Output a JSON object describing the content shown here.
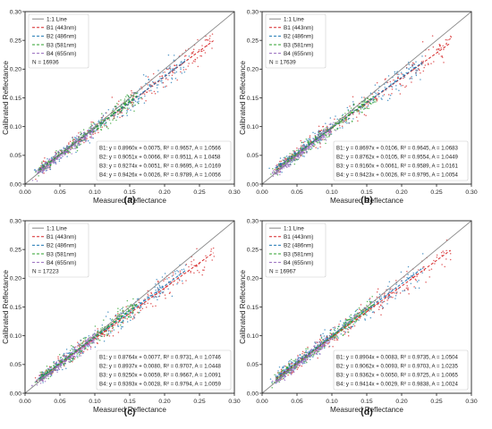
{
  "figure": {
    "panels_note": ""
  },
  "chart_data": [
    {
      "type": "scatter",
      "panel_label": "(a)",
      "xlabel": "Measured Reflectance",
      "ylabel": "Calibrated Reflectance",
      "xlim": [
        0.0,
        0.3
      ],
      "ylim": [
        0.0,
        0.3
      ],
      "xticks": [
        "0.00",
        "0.05",
        "0.10",
        "0.15",
        "0.20",
        "0.25",
        "0.30"
      ],
      "yticks": [
        "0.00",
        "0.05",
        "0.10",
        "0.15",
        "0.20",
        "0.25",
        "0.30"
      ],
      "grid": false,
      "legend_position": "top-left",
      "legend": [
        "1:1 Line",
        "B1 (443nm)",
        "B2 (486nm)",
        "B3 (581nm)",
        "B4 (655nm)",
        "N = 16936"
      ],
      "series": [
        {
          "name": "B1 (443nm)",
          "color": "#d62728",
          "slope": 0.896,
          "intercept": 0.0075,
          "r2": 0.9657,
          "A": 1.0566,
          "x_range": [
            0.02,
            0.27
          ]
        },
        {
          "name": "B2 (486nm)",
          "color": "#1f77b4",
          "slope": 0.9051,
          "intercept": 0.0066,
          "r2": 0.9511,
          "A": 1.0458,
          "x_range": [
            0.02,
            0.23
          ]
        },
        {
          "name": "B3 (581nm)",
          "color": "#2ca02c",
          "slope": 0.9274,
          "intercept": 0.0051,
          "r2": 0.9695,
          "A": 1.0169,
          "x_range": [
            0.02,
            0.16
          ]
        },
        {
          "name": "B4 (655nm)",
          "color": "#9467bd",
          "slope": 0.9426,
          "intercept": 0.0026,
          "r2": 0.9789,
          "A": 1.0056,
          "x_range": [
            0.02,
            0.1
          ]
        }
      ],
      "stats_lines": [
        "B1:  y = 0.8960x + 0.0075,  R² = 0.9657, A = 1.0566",
        "B2:  y = 0.9051x + 0.0066,  R² = 0.9511, A = 1.0458",
        "B3:  y = 0.9274x + 0.0051,  R² = 0.9695, A = 1.0169",
        "B4:  y = 0.9426x + 0.0026,  R² = 0.9789, A = 1.0056"
      ]
    },
    {
      "type": "scatter",
      "panel_label": "(b)",
      "xlabel": "Measured Reflectance",
      "ylabel": "Calibrated Reflectance",
      "xlim": [
        0.0,
        0.3
      ],
      "ylim": [
        0.0,
        0.3
      ],
      "xticks": [
        "0.00",
        "0.05",
        "0.10",
        "0.15",
        "0.20",
        "0.25",
        "0.30"
      ],
      "yticks": [
        "0.00",
        "0.05",
        "0.10",
        "0.15",
        "0.20",
        "0.25",
        "0.30"
      ],
      "grid": false,
      "legend_position": "top-left",
      "legend": [
        "1:1 Line",
        "B1 (443nm)",
        "B2 (486nm)",
        "B3 (581nm)",
        "B4 (655nm)",
        "N = 17639"
      ],
      "series": [
        {
          "name": "B1 (443nm)",
          "color": "#d62728",
          "slope": 0.8697,
          "intercept": 0.0106,
          "r2": 0.9645,
          "A": 1.0683,
          "x_range": [
            0.02,
            0.27
          ]
        },
        {
          "name": "B2 (486nm)",
          "color": "#1f77b4",
          "slope": 0.8762,
          "intercept": 0.0105,
          "r2": 0.9554,
          "A": 1.0449,
          "x_range": [
            0.02,
            0.23
          ]
        },
        {
          "name": "B3 (581nm)",
          "color": "#2ca02c",
          "slope": 0.916,
          "intercept": 0.0061,
          "r2": 0.9589,
          "A": 1.0161,
          "x_range": [
            0.02,
            0.16
          ]
        },
        {
          "name": "B4 (655nm)",
          "color": "#9467bd",
          "slope": 0.9423,
          "intercept": 0.0026,
          "r2": 0.9795,
          "A": 1.0054,
          "x_range": [
            0.02,
            0.1
          ]
        }
      ],
      "stats_lines": [
        "B1:  y = 0.8697x + 0.0106,  R² = 0.9645, A = 1.0683",
        "B2:  y = 0.8762x + 0.0105,  R² = 0.9554, A = 1.0449",
        "B3:  y = 0.9160x + 0.0061,  R² = 0.9589, A = 1.0161",
        "B4:  y = 0.9423x + 0.0026,  R² = 0.9795, A = 1.0054"
      ]
    },
    {
      "type": "scatter",
      "panel_label": "(c)",
      "xlabel": "Measured Reflectance",
      "ylabel": "Calibrated Reflectance",
      "xlim": [
        0.0,
        0.3
      ],
      "ylim": [
        0.0,
        0.3
      ],
      "xticks": [
        "0.00",
        "0.05",
        "0.10",
        "0.15",
        "0.20",
        "0.25",
        "0.30"
      ],
      "yticks": [
        "0.00",
        "0.05",
        "0.10",
        "0.15",
        "0.20",
        "0.25",
        "0.30"
      ],
      "grid": false,
      "legend_position": "top-left",
      "legend": [
        "1:1 Line",
        "B1 (443nm)",
        "B2 (486nm)",
        "B3 (581nm)",
        "B4 (655nm)",
        "N = 17223"
      ],
      "series": [
        {
          "name": "B1 (443nm)",
          "color": "#d62728",
          "slope": 0.8764,
          "intercept": 0.0077,
          "r2": 0.9731,
          "A": 1.0746,
          "x_range": [
            0.02,
            0.27
          ]
        },
        {
          "name": "B2 (486nm)",
          "color": "#1f77b4",
          "slope": 0.8937,
          "intercept": 0.008,
          "r2": 0.9707,
          "A": 1.0448,
          "x_range": [
            0.02,
            0.23
          ]
        },
        {
          "name": "B3 (581nm)",
          "color": "#2ca02c",
          "slope": 0.925,
          "intercept": 0.0059,
          "r2": 0.9667,
          "A": 1.0091,
          "x_range": [
            0.02,
            0.16
          ]
        },
        {
          "name": "B4 (655nm)",
          "color": "#9467bd",
          "slope": 0.9393,
          "intercept": 0.0028,
          "r2": 0.9794,
          "A": 1.0059,
          "x_range": [
            0.02,
            0.1
          ]
        }
      ],
      "stats_lines": [
        "B1:  y = 0.8764x + 0.0077,  R² = 0.9731, A = 1.0746",
        "B2:  y = 0.8937x + 0.0080,  R² = 0.9707, A = 1.0448",
        "B3:  y = 0.9250x + 0.0059,  R² = 0.9667, A = 1.0091",
        "B4:  y = 0.9393x + 0.0028,  R² = 0.9794, A = 1.0059"
      ]
    },
    {
      "type": "scatter",
      "panel_label": "(d)",
      "xlabel": "Measured Reflectance",
      "ylabel": "Calibrated Reflectance",
      "xlim": [
        0.0,
        0.3
      ],
      "ylim": [
        0.0,
        0.3
      ],
      "xticks": [
        "0.00",
        "0.05",
        "0.10",
        "0.15",
        "0.20",
        "0.25",
        "0.30"
      ],
      "yticks": [
        "0.00",
        "0.05",
        "0.10",
        "0.15",
        "0.20",
        "0.25",
        "0.30"
      ],
      "grid": false,
      "legend_position": "top-left",
      "legend": [
        "1:1 Line",
        "B1 (443nm)",
        "B2 (486nm)",
        "B3 (581nm)",
        "B4 (655nm)",
        "N = 16967"
      ],
      "series": [
        {
          "name": "B1 (443nm)",
          "color": "#d62728",
          "slope": 0.8904,
          "intercept": 0.0083,
          "r2": 0.9735,
          "A": 1.0504,
          "x_range": [
            0.02,
            0.27
          ]
        },
        {
          "name": "B2 (486nm)",
          "color": "#1f77b4",
          "slope": 0.9062,
          "intercept": 0.0093,
          "r2": 0.9703,
          "A": 1.0235,
          "x_range": [
            0.02,
            0.23
          ]
        },
        {
          "name": "B3 (581nm)",
          "color": "#2ca02c",
          "slope": 0.9362,
          "intercept": 0.005,
          "r2": 0.9725,
          "A": 1.0065,
          "x_range": [
            0.02,
            0.16
          ]
        },
        {
          "name": "B4 (655nm)",
          "color": "#9467bd",
          "slope": 0.9414,
          "intercept": 0.0029,
          "r2": 0.9838,
          "A": 1.0024,
          "x_range": [
            0.02,
            0.1
          ]
        }
      ],
      "stats_lines": [
        "B1:  y = 0.8904x + 0.0083,  R² = 0.9735, A = 1.0504",
        "B2:  y = 0.9062x + 0.0093,  R² = 0.9703, A = 1.0235",
        "B3:  y = 0.9362x + 0.0050,  R² = 0.9725, A = 1.0065",
        "B4:  y = 0.9414x + 0.0029,  R² = 0.9838, A = 1.0024"
      ]
    }
  ]
}
